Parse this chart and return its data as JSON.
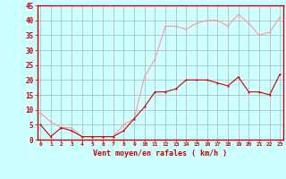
{
  "xlabel": "Vent moyen/en rafales ( km/h )",
  "x": [
    0,
    1,
    2,
    3,
    4,
    5,
    6,
    7,
    8,
    9,
    10,
    11,
    12,
    13,
    14,
    15,
    16,
    17,
    18,
    19,
    20,
    21,
    22,
    23
  ],
  "y_moyen": [
    5,
    1,
    4,
    3,
    1,
    1,
    1,
    1,
    3,
    7,
    11,
    16,
    16,
    17,
    20,
    20,
    20,
    19,
    18,
    21,
    16,
    16,
    15,
    22
  ],
  "y_rafales": [
    9,
    6,
    4,
    4,
    1,
    1,
    1,
    1,
    5,
    7,
    21,
    27,
    38,
    38,
    37,
    39,
    40,
    40,
    38,
    42,
    39,
    35,
    36,
    41
  ],
  "color_moyen": "#cc0000",
  "color_rafales": "#ff9999",
  "bg_color": "#ccffff",
  "grid_color": "#b0b0b0",
  "ylim": [
    0,
    45
  ],
  "yticks": [
    0,
    5,
    10,
    15,
    20,
    25,
    30,
    35,
    40,
    45
  ],
  "axis_color": "#cc0000",
  "tick_color": "#cc0000",
  "label_color": "#cc0000"
}
